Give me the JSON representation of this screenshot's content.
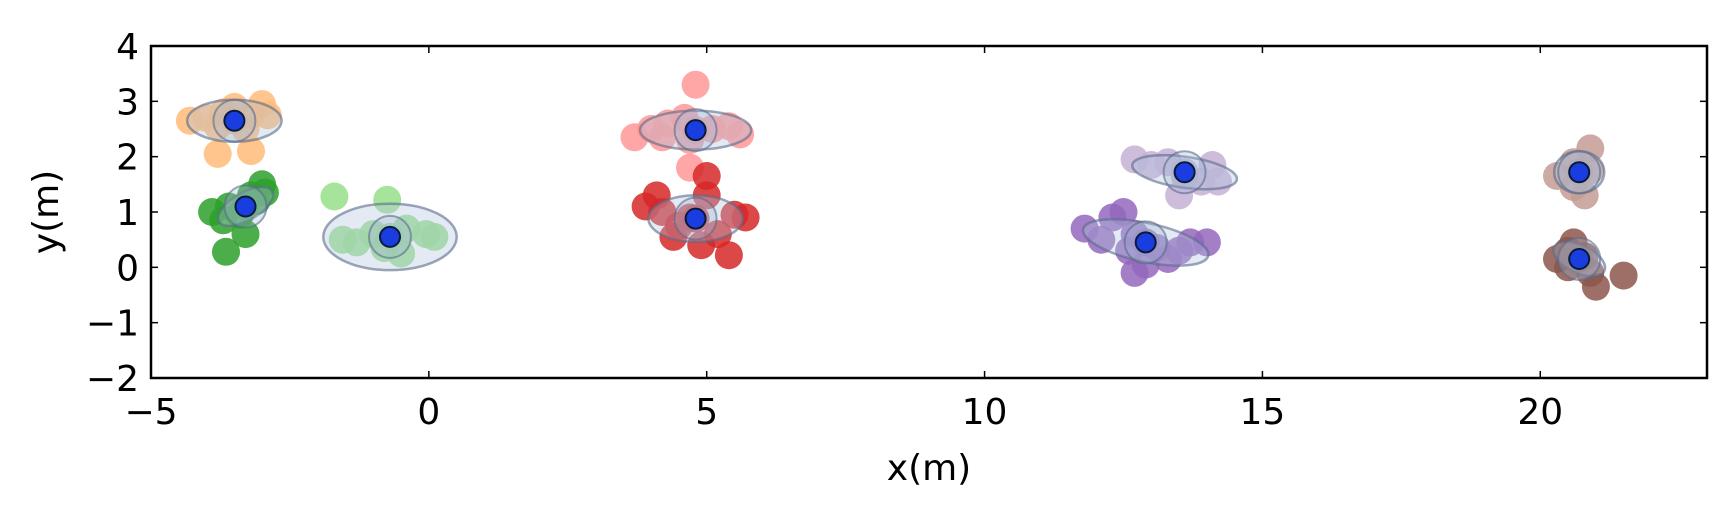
{
  "chart_data": {
    "type": "scatter",
    "title": "",
    "xlabel": "x(m)",
    "ylabel": "y(m)",
    "xlim": [
      -5,
      23
    ],
    "ylim": [
      -2,
      4
    ],
    "xticks": [
      -5,
      0,
      5,
      10,
      15,
      20
    ],
    "yticks": [
      -2,
      -1,
      0,
      1,
      2,
      3,
      4
    ],
    "xtick_labels": [
      "−5",
      "0",
      "5",
      "10",
      "15",
      "20"
    ],
    "ytick_labels": [
      "−2",
      "−1",
      "0",
      "1",
      "2",
      "3",
      "4"
    ],
    "grid": false,
    "legend": "none",
    "center_color": "#1a3de0",
    "ellipse_color": "#b0c4de",
    "clusters": [
      {
        "color": "#ffbb78",
        "center": [
          -3.5,
          2.65
        ],
        "ellipse": {
          "rx": 0.85,
          "ry": 0.38,
          "angle": 0
        },
        "points": [
          [
            -4.3,
            2.65
          ],
          [
            -4.0,
            2.7
          ],
          [
            -3.7,
            2.8
          ],
          [
            -3.5,
            2.9
          ],
          [
            -3.2,
            2.75
          ],
          [
            -3.0,
            2.95
          ],
          [
            -2.9,
            2.75
          ],
          [
            -3.3,
            2.5
          ],
          [
            -3.8,
            2.55
          ],
          [
            -3.8,
            2.05
          ],
          [
            -3.2,
            2.1
          ],
          [
            -3.5,
            2.65
          ]
        ]
      },
      {
        "color": "#2ca02c",
        "center": [
          -3.3,
          1.1
        ],
        "ellipse": {
          "rx": 0.55,
          "ry": 0.25,
          "angle": 30
        },
        "points": [
          [
            -3.9,
            1.0
          ],
          [
            -3.6,
            1.1
          ],
          [
            -3.4,
            0.95
          ],
          [
            -3.1,
            1.2
          ],
          [
            -2.95,
            1.35
          ],
          [
            -3.0,
            1.5
          ],
          [
            -3.2,
            1.3
          ],
          [
            -3.7,
            0.85
          ],
          [
            -3.3,
            0.6
          ],
          [
            -3.65,
            0.28
          ],
          [
            -3.3,
            1.1
          ]
        ]
      },
      {
        "color": "#98df8a",
        "center": [
          -0.7,
          0.55
        ],
        "ellipse": {
          "rx": 1.2,
          "ry": 0.6,
          "angle": 0
        },
        "points": [
          [
            -1.7,
            1.28
          ],
          [
            -1.55,
            0.5
          ],
          [
            -1.3,
            0.45
          ],
          [
            -1.0,
            0.6
          ],
          [
            -0.8,
            0.35
          ],
          [
            -0.5,
            0.25
          ],
          [
            -0.75,
            1.22
          ],
          [
            -0.4,
            0.7
          ],
          [
            -0.05,
            0.6
          ],
          [
            0.1,
            0.55
          ],
          [
            -0.7,
            0.55
          ]
        ]
      },
      {
        "color": "#ff9896",
        "center": [
          4.8,
          2.48
        ],
        "ellipse": {
          "rx": 1.0,
          "ry": 0.35,
          "angle": 0
        },
        "points": [
          [
            3.7,
            2.35
          ],
          [
            4.0,
            2.5
          ],
          [
            4.3,
            2.6
          ],
          [
            4.6,
            2.7
          ],
          [
            4.8,
            3.3
          ],
          [
            5.1,
            2.5
          ],
          [
            5.4,
            2.55
          ],
          [
            5.6,
            2.4
          ],
          [
            4.7,
            2.3
          ],
          [
            4.7,
            1.8
          ],
          [
            4.2,
            2.35
          ],
          [
            4.8,
            2.48
          ]
        ]
      },
      {
        "color": "#d62728",
        "center": [
          4.8,
          0.88
        ],
        "ellipse": {
          "rx": 0.85,
          "ry": 0.42,
          "angle": 0
        },
        "points": [
          [
            3.9,
            1.1
          ],
          [
            4.1,
            1.3
          ],
          [
            4.2,
            1.0
          ],
          [
            4.5,
            0.75
          ],
          [
            4.4,
            0.55
          ],
          [
            4.7,
            0.9
          ],
          [
            5.0,
            1.3
          ],
          [
            5.0,
            1.65
          ],
          [
            5.2,
            0.6
          ],
          [
            5.5,
            0.95
          ],
          [
            5.7,
            0.9
          ],
          [
            5.4,
            0.22
          ],
          [
            4.9,
            0.4
          ],
          [
            4.8,
            0.88
          ]
        ]
      },
      {
        "color": "#c5b0d5",
        "center": [
          13.6,
          1.72
        ],
        "ellipse": {
          "rx": 0.95,
          "ry": 0.28,
          "angle": -8
        },
        "points": [
          [
            12.7,
            1.95
          ],
          [
            13.0,
            1.85
          ],
          [
            13.3,
            1.9
          ],
          [
            13.6,
            1.65
          ],
          [
            13.9,
            1.55
          ],
          [
            14.2,
            1.55
          ],
          [
            14.1,
            1.85
          ],
          [
            13.5,
            1.3
          ],
          [
            13.6,
            1.72
          ]
        ]
      },
      {
        "color": "#9467bd",
        "center": [
          12.9,
          0.45
        ],
        "ellipse": {
          "rx": 1.15,
          "ry": 0.35,
          "angle": -12
        },
        "points": [
          [
            11.8,
            0.7
          ],
          [
            12.1,
            0.5
          ],
          [
            12.3,
            0.9
          ],
          [
            12.5,
            1.0
          ],
          [
            12.6,
            0.3
          ],
          [
            12.7,
            0.6
          ],
          [
            12.9,
            0.05
          ],
          [
            13.1,
            0.35
          ],
          [
            13.3,
            0.15
          ],
          [
            13.5,
            0.3
          ],
          [
            13.7,
            0.45
          ],
          [
            14.0,
            0.45
          ],
          [
            12.7,
            -0.1
          ],
          [
            12.9,
            0.45
          ]
        ]
      },
      {
        "color": "#c49c94",
        "center": [
          20.7,
          1.72
        ],
        "ellipse": {
          "rx": 0.45,
          "ry": 0.38,
          "angle": 0
        },
        "points": [
          [
            20.3,
            1.65
          ],
          [
            20.6,
            1.9
          ],
          [
            20.9,
            2.15
          ],
          [
            20.9,
            1.75
          ],
          [
            20.6,
            1.45
          ],
          [
            20.8,
            1.3
          ],
          [
            20.7,
            1.72
          ]
        ]
      },
      {
        "color": "#8c564b",
        "center": [
          20.7,
          0.15
        ],
        "ellipse": {
          "rx": 0.5,
          "ry": 0.25,
          "angle": -25
        },
        "points": [
          [
            20.3,
            0.15
          ],
          [
            20.5,
            0.0
          ],
          [
            20.6,
            0.45
          ],
          [
            20.8,
            0.2
          ],
          [
            20.9,
            -0.1
          ],
          [
            21.0,
            -0.35
          ],
          [
            21.5,
            -0.15
          ],
          [
            20.5,
            0.3
          ],
          [
            20.7,
            0.15
          ]
        ]
      }
    ]
  }
}
